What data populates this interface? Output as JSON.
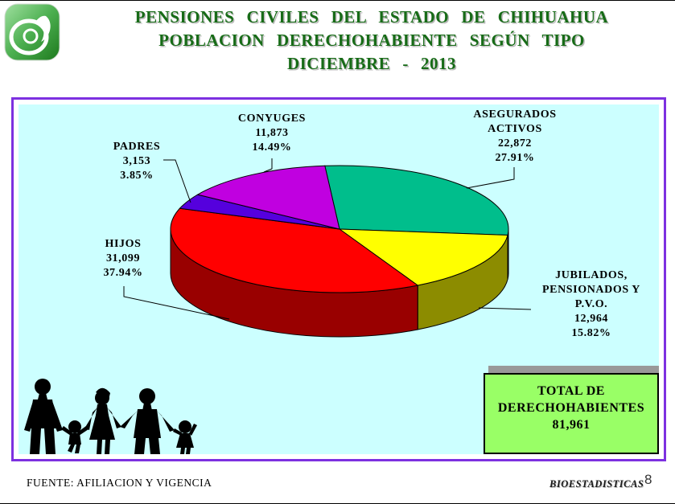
{
  "header": {
    "title_line1": "PENSIONES CIVILES DEL ESTADO DE CHIHUAHUA",
    "title_line2": "POBLACION DERECHOHABIENTE SEGÚN TIPO",
    "title_line3": "DICIEMBRE - 2013",
    "title_color": "#176B17",
    "logo_name": "pensiones-civiles-green-logo"
  },
  "chart_data": {
    "type": "pie",
    "title": "POBLACION DERECHOHABIENTE SEGÚN TIPO — DICIEMBRE 2013",
    "style": "3d-pie",
    "background": "#CCFFFF",
    "frame_border_color": "#7D31E0",
    "start_angle_deg": -5,
    "direction": "clockwise-from-12",
    "legend_position": "callout-labels",
    "slices": [
      {
        "label_lines": [
          "ASEGURADOS",
          "ACTIVOS"
        ],
        "value": 22872,
        "value_text": "22,872",
        "pct": 27.91,
        "pct_text": "27.91%",
        "color": "#00BE8C",
        "side_color": "#00805E"
      },
      {
        "label_lines": [
          "JUBILADOS,",
          "PENSIONADOS Y",
          "P.V.O."
        ],
        "value": 12964,
        "value_text": "12,964",
        "pct": 15.82,
        "pct_text": "15.82%",
        "color": "#FFFF00",
        "side_color": "#8C8C00"
      },
      {
        "label_lines": [
          "HIJOS"
        ],
        "value": 31099,
        "value_text": "31,099",
        "pct": 37.94,
        "pct_text": "37.94%",
        "color": "#FF0000",
        "side_color": "#990000"
      },
      {
        "label_lines": [
          "PADRES"
        ],
        "value": 3153,
        "value_text": "3,153",
        "pct": 3.85,
        "pct_text": "3.85%",
        "color": "#5500DD",
        "side_color": "#37008F"
      },
      {
        "label_lines": [
          "CONYUGES"
        ],
        "value": 11873,
        "value_text": "11,873",
        "pct": 14.49,
        "pct_text": "14.49%",
        "color": "#C000E0",
        "side_color": "#7A0090"
      }
    ]
  },
  "total_box": {
    "line1": "TOTAL DE",
    "line2": "DERECHOHABIENTES",
    "value": 81961,
    "value_text": "81,961",
    "fill_color": "#99FF66"
  },
  "footer": {
    "source": "FUENTE: AFILIACION Y VIGENCIA",
    "right_label": "BIOESTADISTICAS",
    "page_number": "8"
  }
}
